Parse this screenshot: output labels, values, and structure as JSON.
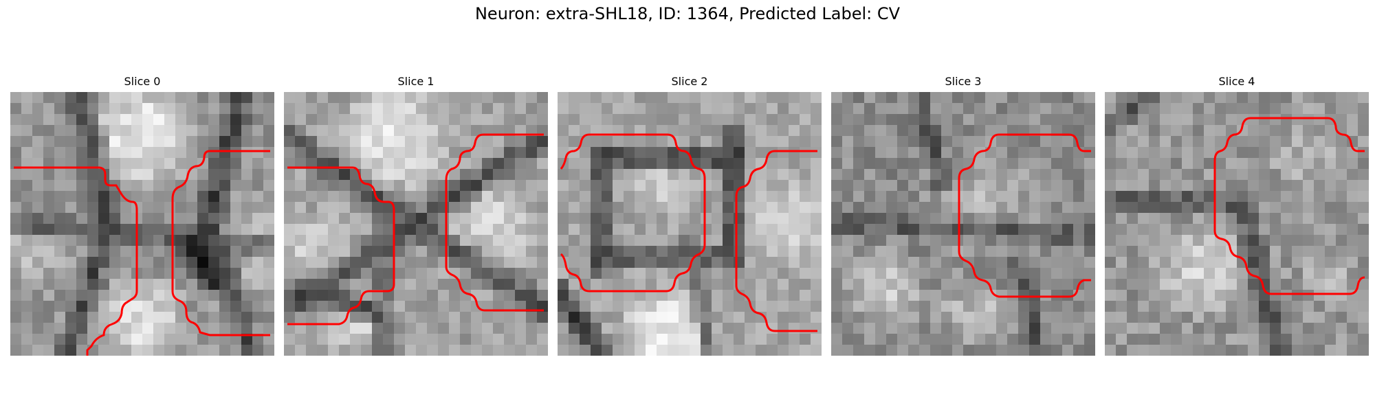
{
  "figure": {
    "title": "Neuron: extra-SHL18, ID: 1364, Predicted Label: CV"
  },
  "panels": [
    {
      "title": "Slice 0"
    },
    {
      "title": "Slice 1"
    },
    {
      "title": "Slice 2"
    },
    {
      "title": "Slice 3"
    },
    {
      "title": "Slice 4"
    }
  ],
  "contour_color": "#ff0000",
  "colormap": "gray"
}
